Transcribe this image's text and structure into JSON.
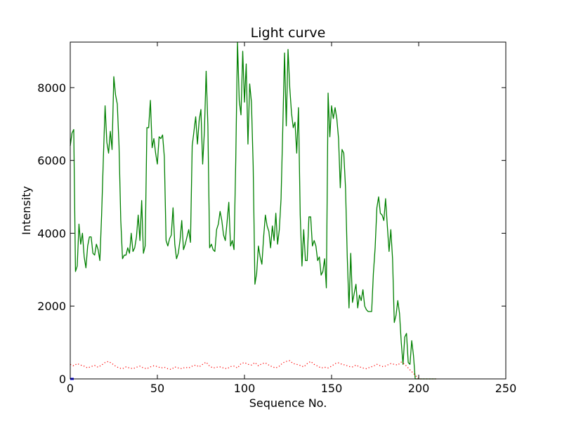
{
  "chart_data": {
    "type": "line",
    "title": "Light curve",
    "xlabel": "Sequence No.",
    "ylabel": "Intensity",
    "xlim": [
      0,
      250
    ],
    "ylim": [
      0,
      9250
    ],
    "xticks": [
      0,
      50,
      100,
      150,
      200,
      250
    ],
    "yticks": [
      0,
      2000,
      4000,
      6000,
      8000
    ],
    "grid": false,
    "series": [
      {
        "color": "#008000",
        "style": "solid",
        "x": [
          0,
          1,
          2,
          3,
          4,
          5,
          6,
          7,
          8,
          9,
          10,
          11,
          12,
          13,
          14,
          15,
          16,
          17,
          18,
          19,
          20,
          21,
          22,
          23,
          24,
          25,
          26,
          27,
          28,
          29,
          30,
          31,
          32,
          33,
          34,
          35,
          36,
          37,
          38,
          39,
          40,
          41,
          42,
          43,
          44,
          45,
          46,
          47,
          48,
          49,
          50,
          51,
          52,
          53,
          54,
          55,
          56,
          57,
          58,
          59,
          60,
          61,
          62,
          63,
          64,
          65,
          66,
          67,
          68,
          69,
          70,
          71,
          72,
          73,
          74,
          75,
          76,
          77,
          78,
          79,
          80,
          81,
          82,
          83,
          84,
          85,
          86,
          87,
          88,
          89,
          90,
          91,
          92,
          93,
          94,
          95,
          96,
          97,
          98,
          99,
          100,
          101,
          102,
          103,
          104,
          105,
          106,
          107,
          108,
          109,
          110,
          111,
          112,
          113,
          114,
          115,
          116,
          117,
          118,
          119,
          120,
          121,
          122,
          123,
          124,
          125,
          126,
          127,
          128,
          129,
          130,
          131,
          132,
          133,
          134,
          135,
          136,
          137,
          138,
          139,
          140,
          141,
          142,
          143,
          144,
          145,
          146,
          147,
          148,
          149,
          150,
          151,
          152,
          153,
          154,
          155,
          156,
          157,
          158,
          159,
          160,
          161,
          162,
          163,
          164,
          165,
          166,
          167,
          168,
          169,
          170,
          171,
          172,
          173,
          174,
          175,
          176,
          177,
          178,
          179,
          180,
          181,
          182,
          183,
          184,
          185,
          186,
          187,
          188,
          189,
          190,
          191,
          192,
          193,
          194,
          195,
          196,
          197,
          198,
          199,
          200,
          201,
          202,
          203,
          204,
          205,
          206,
          207,
          208,
          209,
          210
        ],
        "y": [
          6400,
          6750,
          6850,
          2950,
          3100,
          4250,
          3700,
          4000,
          3350,
          3050,
          3650,
          3900,
          3900,
          3450,
          3400,
          3700,
          3550,
          3250,
          4500,
          6050,
          7500,
          6500,
          6200,
          6800,
          6300,
          8300,
          7800,
          7550,
          6400,
          4350,
          3300,
          3400,
          3400,
          3600,
          3450,
          4000,
          3500,
          3600,
          3900,
          4500,
          3800,
          4900,
          3450,
          3650,
          6900,
          6900,
          7650,
          6350,
          6600,
          6200,
          5900,
          6650,
          6600,
          6700,
          6100,
          3800,
          3650,
          3850,
          3950,
          4700,
          3700,
          3300,
          3450,
          3800,
          4350,
          3550,
          3700,
          3900,
          4100,
          3750,
          6400,
          6800,
          7200,
          6450,
          7100,
          7400,
          5900,
          6800,
          8450,
          6950,
          3600,
          3700,
          3550,
          3500,
          4100,
          4250,
          4600,
          4350,
          3950,
          3800,
          4300,
          4850,
          3650,
          3800,
          3550,
          6000,
          9250,
          7650,
          7250,
          9000,
          7600,
          8650,
          6450,
          8100,
          7600,
          5850,
          2600,
          2900,
          3650,
          3350,
          3150,
          3900,
          4500,
          4200,
          4050,
          3600,
          4200,
          3800,
          4550,
          3700,
          4100,
          4950,
          6900,
          8950,
          6950,
          9050,
          8000,
          7300,
          6900,
          7050,
          6200,
          7450,
          4500,
          3100,
          4100,
          3250,
          3250,
          4450,
          4450,
          3650,
          3800,
          3650,
          3250,
          3350,
          2850,
          2950,
          3300,
          2500,
          7850,
          6650,
          7500,
          7150,
          7450,
          7150,
          6600,
          5250,
          6300,
          6200,
          5250,
          3350,
          1950,
          3450,
          2100,
          2350,
          2600,
          1950,
          2300,
          2150,
          2450,
          2000,
          1900,
          1850,
          1850,
          1850,
          2900,
          3600,
          4700,
          5000,
          4550,
          4500,
          4350,
          4950,
          4200,
          3500,
          4100,
          3300,
          1550,
          1750,
          2150,
          1800,
          1000,
          400,
          1150,
          1250,
          450,
          400,
          1050,
          650,
          0,
          0,
          0,
          0,
          0,
          0,
          0,
          0,
          0,
          0,
          0,
          0,
          0
        ]
      },
      {
        "color": "#ff0000",
        "style": "dotted",
        "x": [
          0,
          2,
          4,
          6,
          8,
          10,
          12,
          14,
          16,
          18,
          20,
          22,
          24,
          26,
          28,
          30,
          32,
          34,
          36,
          38,
          40,
          42,
          44,
          46,
          48,
          50,
          52,
          54,
          56,
          58,
          60,
          62,
          64,
          66,
          68,
          70,
          72,
          74,
          76,
          78,
          80,
          82,
          84,
          86,
          88,
          90,
          92,
          94,
          96,
          98,
          100,
          102,
          104,
          106,
          108,
          110,
          112,
          114,
          116,
          118,
          120,
          122,
          124,
          126,
          128,
          130,
          132,
          134,
          136,
          138,
          140,
          142,
          144,
          146,
          148,
          150,
          152,
          154,
          156,
          158,
          160,
          162,
          164,
          166,
          168,
          170,
          172,
          174,
          176,
          178,
          180,
          182,
          184,
          186,
          188,
          190,
          192,
          194,
          196,
          198,
          200,
          202,
          204,
          206,
          208,
          210
        ],
        "y": [
          400,
          360,
          420,
          380,
          350,
          300,
          340,
          370,
          320,
          380,
          450,
          480,
          420,
          350,
          300,
          280,
          330,
          300,
          280,
          320,
          350,
          300,
          280,
          330,
          360,
          340,
          300,
          320,
          280,
          260,
          330,
          300,
          280,
          320,
          300,
          350,
          380,
          330,
          400,
          460,
          350,
          300,
          320,
          330,
          300,
          280,
          340,
          350,
          300,
          420,
          450,
          400,
          380,
          450,
          360,
          420,
          440,
          380,
          330,
          300,
          350,
          440,
          480,
          500,
          420,
          400,
          370,
          330,
          420,
          480,
          400,
          350,
          300,
          320,
          300,
          350,
          420,
          440,
          400,
          380,
          340,
          330,
          380,
          330,
          300,
          280,
          320,
          350,
          400,
          360,
          330,
          380,
          420,
          400,
          380,
          460,
          400,
          300,
          200,
          100,
          0,
          0,
          0,
          0,
          0,
          0
        ]
      },
      {
        "color": "#0000ff",
        "style": "solid",
        "x": [
          0,
          1,
          2
        ],
        "y": [
          0,
          0,
          0
        ]
      }
    ]
  }
}
